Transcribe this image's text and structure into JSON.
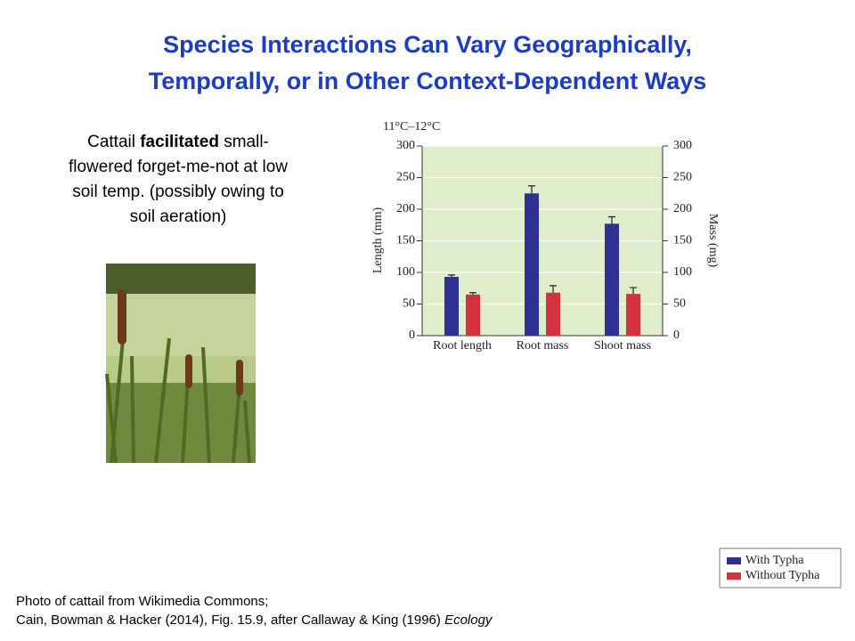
{
  "title": [
    "Species Interactions Can Vary Geographically,",
    "Temporally, or in Other Context-Dependent Ways"
  ],
  "description": {
    "first": [
      "Cattail ",
      "facilitated",
      " small-"
    ],
    "lines": [
      "flowered forget-me-not at low",
      "soil temp. (possibly owing to",
      "soil aeration)"
    ]
  },
  "footer": {
    "line1": "Photo of cattail from Wikimedia Commons;",
    "line2": [
      "Cain, Bowman & Hacker (2014), Fig. 15.9, after Callaway & King (1996) ",
      "Ecology"
    ]
  },
  "chart_data": {
    "type": "bar",
    "annotation": "11°C–12°C",
    "ylabel": "Length (mm)",
    "y2label": "Mass (mg)",
    "categories": [
      "Root length",
      "Root mass",
      "Shoot mass"
    ],
    "series": [
      {
        "name": "With Typha",
        "color": "#2e3192",
        "values": [
          93,
          225,
          177
        ],
        "errors": [
          3,
          12,
          11
        ]
      },
      {
        "name": "Without Typha",
        "color": "#d3323f",
        "values": [
          65,
          68,
          66
        ],
        "errors": [
          3,
          11,
          10
        ]
      }
    ],
    "ylim": [
      0,
      300
    ],
    "yticks": [
      0,
      50,
      100,
      150,
      200,
      250,
      300
    ],
    "y2lim": [
      0,
      300
    ],
    "y2ticks": [
      0,
      50,
      100,
      150,
      200,
      250,
      300
    ],
    "grid": true,
    "legend": "bottom-right"
  }
}
